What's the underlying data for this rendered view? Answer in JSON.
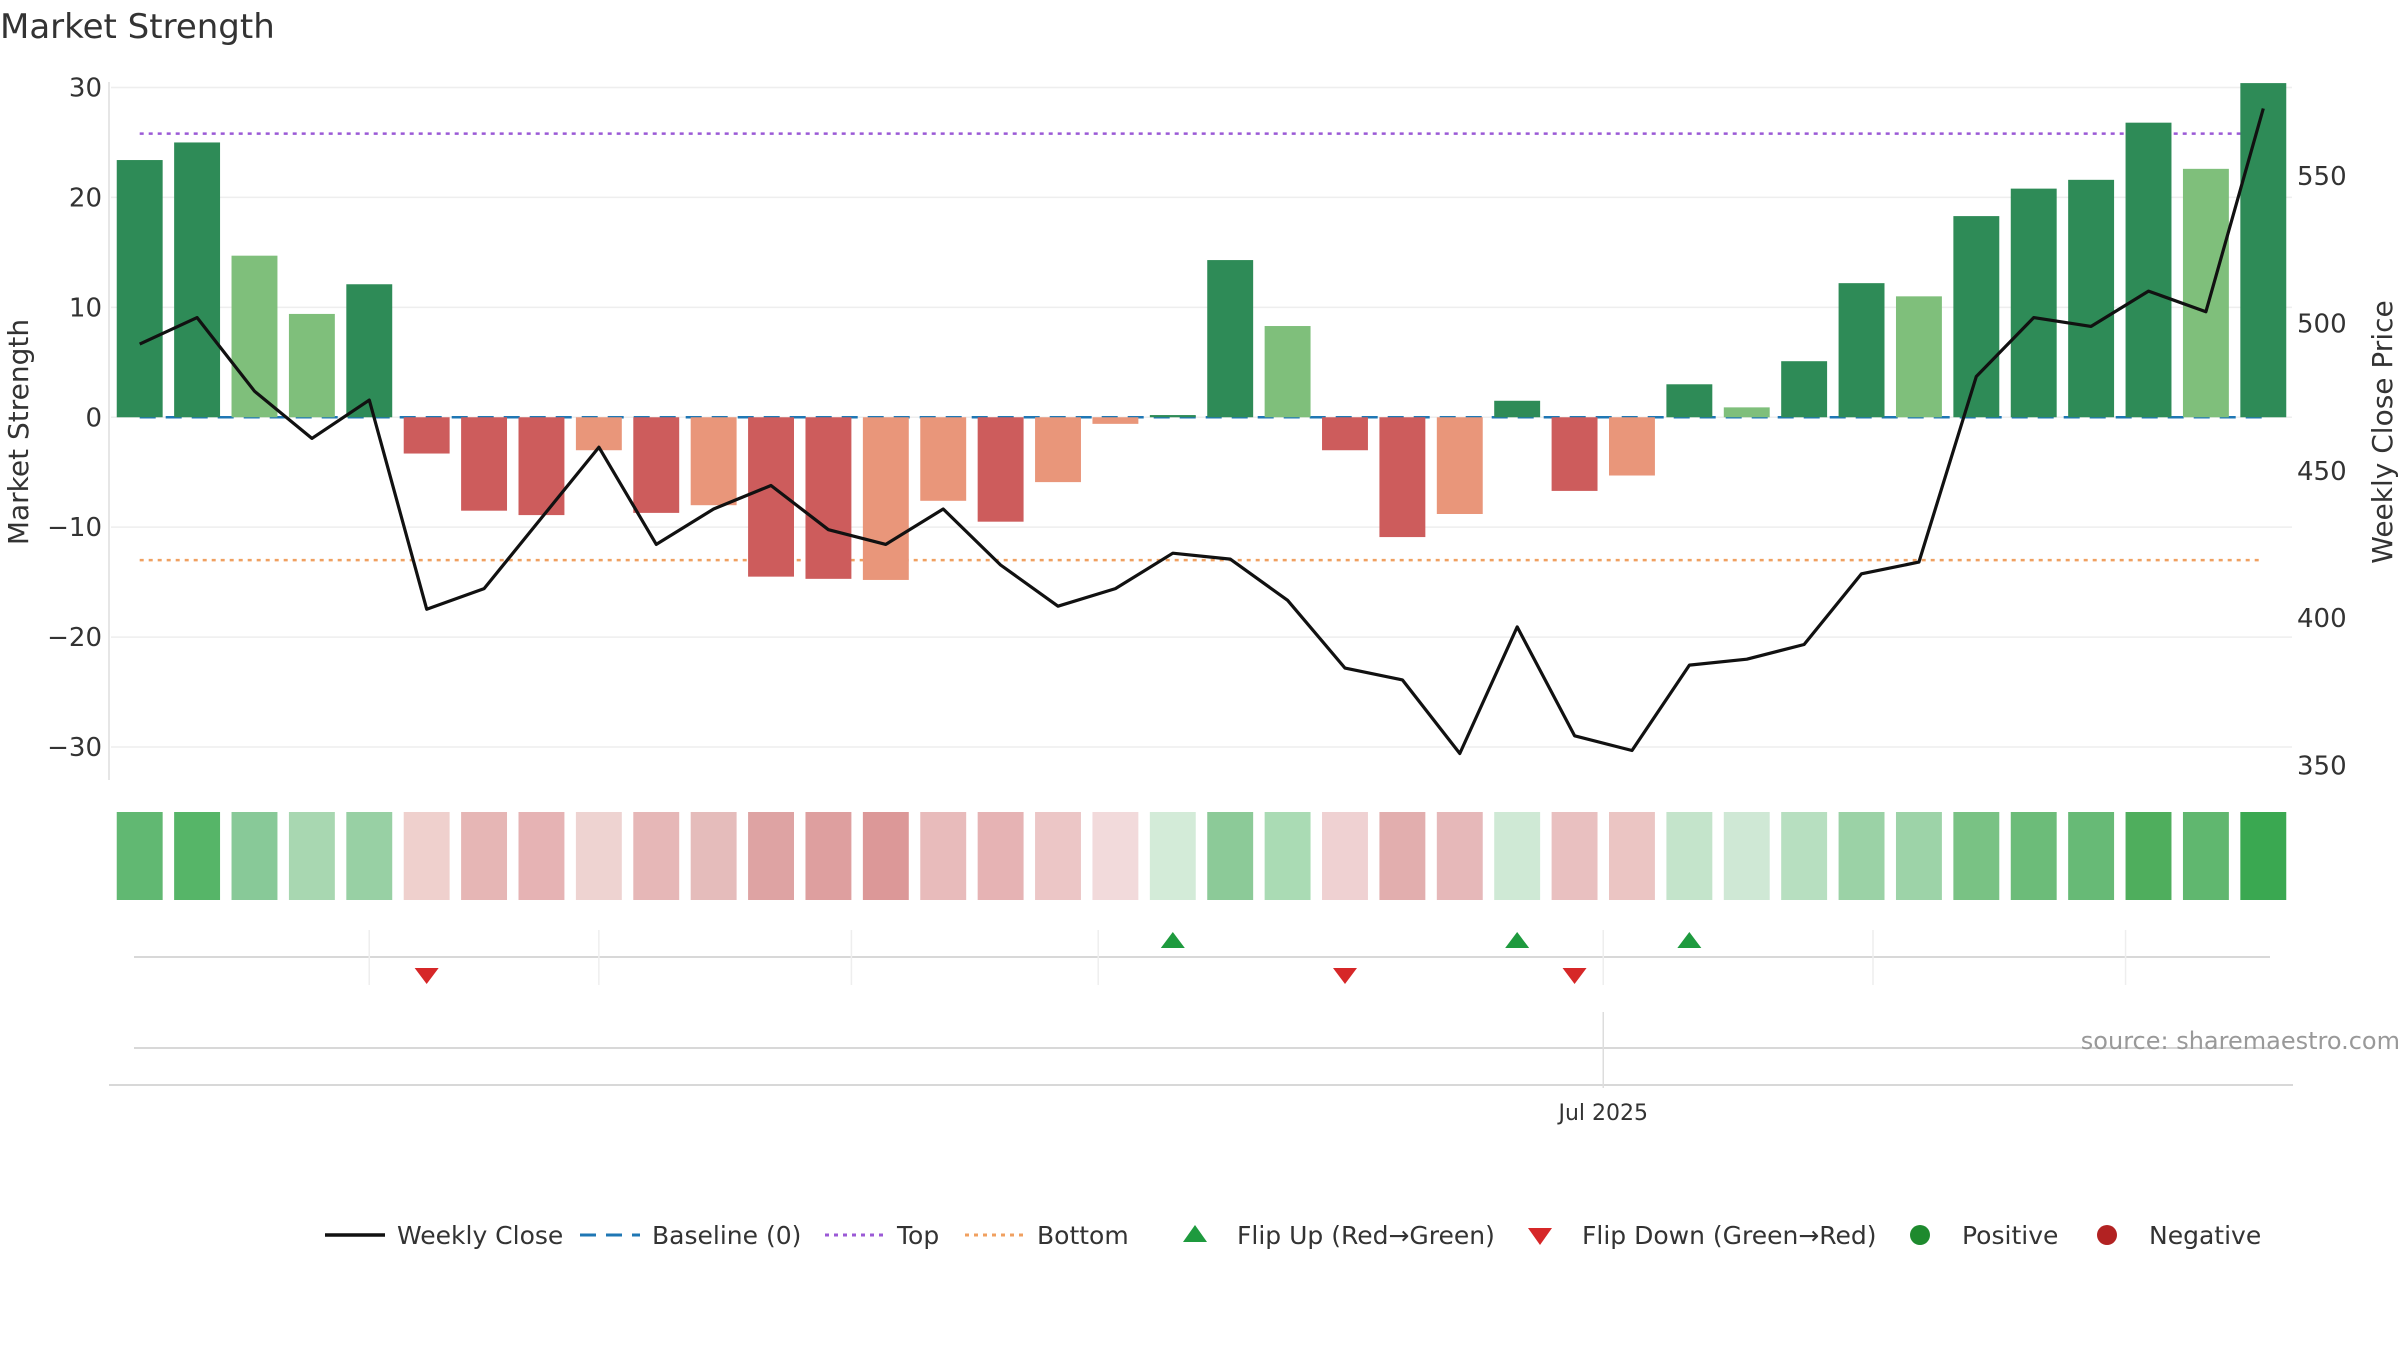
{
  "chart_data": {
    "type": "bar",
    "title": "Market Strength",
    "ylabel_left": "Market Strength",
    "ylabel_right": "Weekly Close Price",
    "source": "source: sharemaestro.com",
    "x_tick_label": "Jul 2025",
    "x_tick_index": 25.5,
    "ylim_left": [
      -33,
      30.5
    ],
    "yticks_left": [
      30,
      20,
      10,
      0,
      -10,
      -20,
      -30
    ],
    "ylim_right": [
      345,
      582
    ],
    "yticks_right": [
      550,
      500,
      450,
      400,
      350
    ],
    "grid": true,
    "top_line": 25.8,
    "bottom_line": -13,
    "baseline": 0,
    "strength_values": [
      23.4,
      25.0,
      14.7,
      9.4,
      12.1,
      -3.3,
      -8.5,
      -8.9,
      -3.0,
      -8.7,
      -8.0,
      -14.5,
      -14.7,
      -14.8,
      -7.6,
      -9.5,
      -5.9,
      -0.6,
      0.2,
      14.3,
      8.3,
      -3.0,
      -10.9,
      -8.8,
      1.5,
      -6.7,
      -5.3,
      3.0,
      0.9,
      5.1,
      12.2,
      11.0,
      18.3,
      20.8,
      21.6,
      26.8,
      22.6,
      30.4
    ],
    "bar_colors": [
      "#2e8b57",
      "#2e8b57",
      "#7fbf7b",
      "#7fbf7b",
      "#2e8b57",
      "#cd5c5c",
      "#cd5c5c",
      "#cd5c5c",
      "#e9967a",
      "#cd5c5c",
      "#e9967a",
      "#cd5c5c",
      "#cd5c5c",
      "#e9967a",
      "#e9967a",
      "#cd5c5c",
      "#e9967a",
      "#e9967a",
      "#2e8b57",
      "#2e8b57",
      "#7fbf7b",
      "#cd5c5c",
      "#cd5c5c",
      "#e9967a",
      "#2e8b57",
      "#cd5c5c",
      "#e9967a",
      "#2e8b57",
      "#7fbf7b",
      "#2e8b57",
      "#2e8b57",
      "#7fbf7b",
      "#2e8b57",
      "#2e8b57",
      "#2e8b57",
      "#2e8b57",
      "#7fbf7b",
      "#2e8b57"
    ],
    "weekly_close": [
      493,
      502,
      477,
      461,
      474,
      403,
      410,
      434,
      458,
      425,
      437,
      445,
      430,
      425,
      437,
      418,
      404,
      410,
      422,
      420,
      406,
      383,
      379,
      354,
      397,
      360,
      355,
      384,
      386,
      391,
      415,
      419,
      482,
      502,
      499,
      511,
      504,
      573
    ],
    "heat_colors": [
      "#61b872",
      "#56b568",
      "#88c998",
      "#a8d7b1",
      "#98d0a4",
      "#efd0cd",
      "#e6b6b5",
      "#e6b3b4",
      "#eed3d1",
      "#e6b7b7",
      "#e5bcbb",
      "#dea3a3",
      "#de9f9f",
      "#dc9898",
      "#e8bbbb",
      "#e6b3b4",
      "#ecc6c6",
      "#f2dadb",
      "#d3ebd8",
      "#8cca98",
      "#aadbb4",
      "#efd1d2",
      "#e2aeae",
      "#e6b8b9",
      "#cfe9d5",
      "#e9c0c0",
      "#ebc5c3",
      "#c4e4cb",
      "#cfe8d5",
      "#b7dfc0",
      "#9bd2a6",
      "#9dd3a8",
      "#79c284",
      "#6cbc79",
      "#67ba76",
      "#4fae5d",
      "#60b76f",
      "#3aa851"
    ],
    "flip_up_indices": [
      18,
      24,
      27
    ],
    "flip_down_indices": [
      5,
      21,
      25
    ],
    "legend": [
      {
        "key": "weekly",
        "label": "Weekly Close",
        "color": "#111111"
      },
      {
        "key": "baseline",
        "label": "Baseline (0)",
        "color": "#1f77b4"
      },
      {
        "key": "top",
        "label": "Top",
        "color": "#9b59d6"
      },
      {
        "key": "bottom",
        "label": "Bottom",
        "color": "#f0a060"
      },
      {
        "key": "flipup",
        "label": "Flip Up (Red→Green)",
        "color": "#1e9a3e"
      },
      {
        "key": "flipdown",
        "label": "Flip Down (Green→Red)",
        "color": "#d62728"
      },
      {
        "key": "positive",
        "label": "Positive",
        "color": "#1e8a2e"
      },
      {
        "key": "negative",
        "label": "Negative",
        "color": "#b22222"
      }
    ]
  }
}
